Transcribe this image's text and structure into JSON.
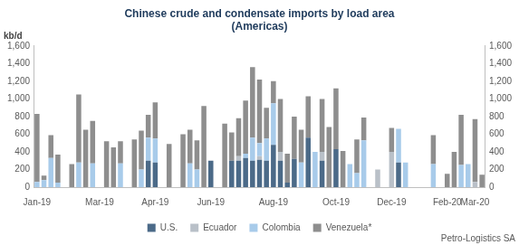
{
  "chart_data": {
    "type": "bar",
    "title": [
      "Chinese crude and condensate imports by load area",
      "(Americas)"
    ],
    "ylabel": "kb/d",
    "annotations": [
      "Petro-Logistics SA"
    ],
    "stacked": true,
    "grid": false,
    "legend": "bottom",
    "categories": [
      "Jan-19",
      null,
      null,
      null,
      null,
      null,
      null,
      null,
      null,
      "Mar-19",
      null,
      null,
      null,
      null,
      null,
      null,
      null,
      "Apr-19",
      null,
      null,
      null,
      null,
      null,
      null,
      null,
      "Jun-19",
      null,
      null,
      null,
      null,
      null,
      null,
      null,
      null,
      "Aug-19",
      null,
      null,
      null,
      null,
      null,
      null,
      null,
      null,
      "Oct-19",
      null,
      null,
      null,
      null,
      null,
      null,
      null,
      "Dec-19",
      null,
      null,
      null,
      null,
      null,
      null,
      null,
      "Feb-20",
      null,
      null,
      null,
      "Mar-20",
      null
    ],
    "series": [
      {
        "name": "U.S.",
        "color": "#4b6a88",
        "values": [
          0,
          0,
          0,
          0,
          0,
          0,
          0,
          0,
          0,
          0,
          0,
          0,
          0,
          0,
          0,
          0,
          300,
          280,
          0,
          0,
          0,
          0,
          0,
          0,
          0,
          300,
          0,
          0,
          300,
          300,
          330,
          300,
          310,
          300,
          480,
          300,
          50,
          320,
          0,
          560,
          0,
          300,
          0,
          430,
          0,
          0,
          0,
          0,
          0,
          0,
          0,
          0,
          280,
          0,
          0,
          0,
          0,
          0,
          0,
          0,
          0,
          0,
          0,
          0,
          0
        ]
      },
      {
        "name": "Ecuador",
        "color": "#b9c0c8",
        "values": [
          0,
          0,
          0,
          0,
          0,
          0,
          0,
          0,
          0,
          0,
          0,
          0,
          0,
          0,
          0,
          0,
          0,
          0,
          0,
          0,
          0,
          0,
          0,
          0,
          0,
          0,
          0,
          0,
          0,
          50,
          0,
          0,
          40,
          0,
          0,
          100,
          0,
          0,
          0,
          0,
          0,
          100,
          0,
          0,
          0,
          0,
          0,
          0,
          0,
          200,
          0,
          400,
          0,
          0,
          0,
          0,
          0,
          0,
          0,
          0,
          0,
          0,
          0,
          60,
          0
        ]
      },
      {
        "name": "Colombia",
        "color": "#a8cbea",
        "values": [
          60,
          80,
          330,
          50,
          0,
          0,
          280,
          0,
          270,
          0,
          0,
          0,
          270,
          0,
          0,
          200,
          260,
          270,
          0,
          0,
          0,
          0,
          270,
          200,
          0,
          0,
          0,
          0,
          0,
          0,
          50,
          260,
          150,
          250,
          470,
          0,
          0,
          0,
          280,
          0,
          400,
          0,
          0,
          0,
          0,
          260,
          160,
          530,
          0,
          0,
          0,
          0,
          380,
          280,
          0,
          0,
          0,
          260,
          0,
          0,
          0,
          250,
          260,
          0,
          0
        ]
      },
      {
        "name": "Venezuela*",
        "color": "#8e8e8e",
        "values": [
          770,
          50,
          260,
          320,
          0,
          260,
          770,
          650,
          480,
          0,
          520,
          450,
          250,
          0,
          540,
          440,
          260,
          410,
          0,
          490,
          0,
          600,
          380,
          330,
          920,
          0,
          0,
          720,
          320,
          430,
          600,
          800,
          720,
          350,
          250,
          600,
          330,
          480,
          370,
          470,
          0,
          600,
          680,
          690,
          410,
          0,
          380,
          260,
          0,
          0,
          0,
          270,
          0,
          0,
          0,
          0,
          0,
          330,
          0,
          150,
          400,
          570,
          0,
          710,
          140
        ]
      }
    ],
    "ylim": [
      0,
      1600
    ],
    "yticks": [
      0,
      200,
      400,
      600,
      800,
      {
        "value": 1000,
        "label": "1,000"
      },
      {
        "value": 1200,
        "label": "1,200"
      },
      {
        "value": 1400,
        "label": "1,400"
      },
      {
        "value": 1600,
        "label": "1,600"
      }
    ],
    "y2lim": [
      0,
      1600
    ],
    "y2ticks": [
      0,
      200,
      400,
      600,
      800,
      {
        "value": 1000,
        "label": "1,000"
      },
      {
        "value": 1200,
        "label": "1,200"
      },
      {
        "value": 1400,
        "label": "1,400"
      },
      {
        "value": 1600,
        "label": "1,600"
      }
    ]
  }
}
